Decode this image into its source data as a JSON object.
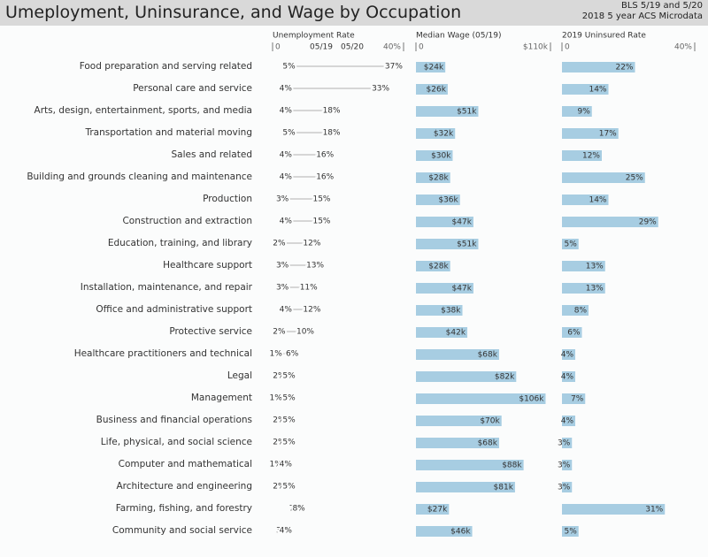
{
  "header": {
    "title": "Umeployment, Uninsurance, and Wage by Occupation",
    "source_line1": "BLS 5/19 and 5/20",
    "source_line2": "2018 5 year ACS Microdata"
  },
  "colors": {
    "bar": "#a7cde2",
    "text": "#333333",
    "header_bg": "#d9d9d9",
    "line": "#999999"
  },
  "chart_data": [
    {
      "type": "dumbbell",
      "title": "Unemployment Rate",
      "axis_min_label": "0",
      "axis_max_label": "40%",
      "series_labels": [
        "05/19",
        "05/20"
      ],
      "xlim": [
        0,
        40
      ],
      "categories": [
        "Food preparation and serving related",
        "Personal care and service",
        "Arts, design, entertainment, sports, and media",
        "Transportation and material moving",
        "Sales and related",
        "Building and grounds cleaning and maintenance",
        "Production",
        "Construction and extraction",
        "Education, training, and library",
        "Healthcare support",
        "Installation, maintenance, and repair",
        "Office and administrative support",
        "Protective service",
        "Healthcare practitioners and technical",
        "Legal",
        "Management",
        "Business and financial operations",
        "Life, physical, and social science",
        "Computer and mathematical",
        "Architecture and engineering",
        "Farming, fishing, and forestry",
        "Community and social service"
      ],
      "series": [
        {
          "name": "05/19",
          "values": [
            5,
            4,
            4,
            5,
            4,
            4,
            3,
            4,
            2,
            3,
            3,
            4,
            2,
            1,
            2,
            1,
            2,
            2,
            1,
            2,
            7,
            3
          ]
        },
        {
          "name": "05/20",
          "values": [
            37,
            33,
            18,
            18,
            16,
            16,
            15,
            15,
            12,
            13,
            11,
            12,
            10,
            6,
            5,
            5,
            5,
            5,
            4,
            5,
            8,
            4
          ]
        }
      ]
    },
    {
      "type": "bar",
      "title": "Median Wage (05/19)",
      "axis_min_label": "0",
      "axis_max_label": "$110k",
      "xlim": [
        0,
        110
      ],
      "unit": "thousands USD",
      "values": [
        24,
        26,
        51,
        32,
        30,
        28,
        36,
        47,
        51,
        28,
        47,
        38,
        42,
        68,
        82,
        106,
        70,
        68,
        88,
        81,
        27,
        46
      ]
    },
    {
      "type": "bar",
      "title": "2019 Uninsured Rate",
      "axis_min_label": "0",
      "axis_max_label": "40%",
      "xlim": [
        0,
        40
      ],
      "values": [
        22,
        14,
        9,
        17,
        12,
        25,
        14,
        29,
        5,
        13,
        13,
        8,
        6,
        4,
        4,
        7,
        4,
        3,
        3,
        3,
        31,
        5
      ]
    }
  ]
}
